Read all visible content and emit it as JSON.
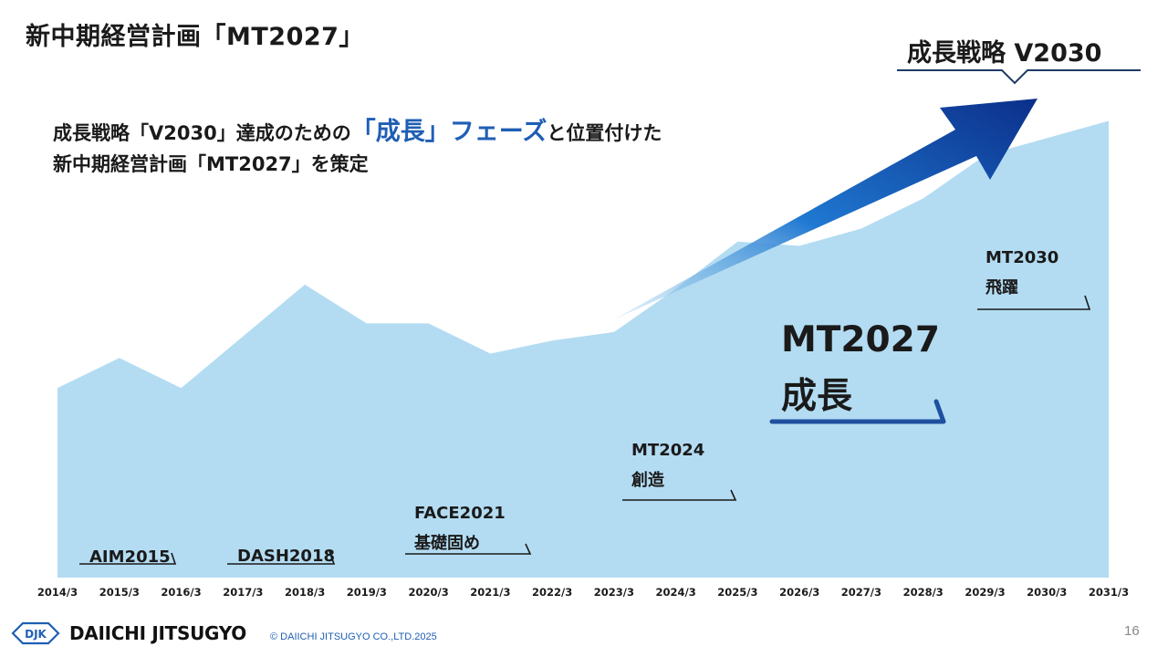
{
  "page": {
    "title": "新中期経営計画「MT2027」",
    "strategy_badge": "成長戦略 V2030",
    "headline_line1_a": "成長戦略「V2030」達成のための",
    "headline_line1_emph": "「成長」フェーズ",
    "headline_line1_b": "と位置付けた",
    "headline_line2": "新中期経営計画「MT2027」を策定",
    "page_number": "16"
  },
  "phases": [
    {
      "name": "AIM2015",
      "desc": ""
    },
    {
      "name": "DASH2018",
      "desc": ""
    },
    {
      "name": "FACE2021",
      "desc": "基礎固め"
    },
    {
      "name": "MT2024",
      "desc": "創造"
    },
    {
      "name": "MT2027",
      "desc": "成長"
    },
    {
      "name": "MT2030",
      "desc": "飛躍"
    }
  ],
  "footer": {
    "logo_mark": "DJK",
    "company": "DAIICHI JITSUGYO",
    "copyright": "© DAIICHI JITSUGYO CO.,LTD.2025"
  },
  "colors": {
    "area": "#b3dcf2",
    "accent": "#1f5fb4",
    "arrow_dark": "#0b2f8a",
    "arrow_mid": "#1f78d1",
    "arrow_light": "#b3dcf2"
  },
  "chart_data": {
    "type": "area",
    "categories": [
      "2014/3",
      "2015/3",
      "2016/3",
      "2017/3",
      "2018/3",
      "2019/3",
      "2020/3",
      "2021/3",
      "2022/3",
      "2023/3",
      "2024/3",
      "2025/3",
      "2026/3",
      "2027/3",
      "2028/3",
      "2029/3",
      "2030/3",
      "2031/3"
    ],
    "values": [
      44,
      51,
      44,
      56,
      68,
      59,
      59,
      52,
      55,
      57,
      67,
      78,
      77,
      81,
      88,
      98,
      102,
      106
    ],
    "ylim": [
      0,
      115
    ],
    "xlabel": "",
    "ylabel": "",
    "grid": false,
    "legend": "none"
  }
}
